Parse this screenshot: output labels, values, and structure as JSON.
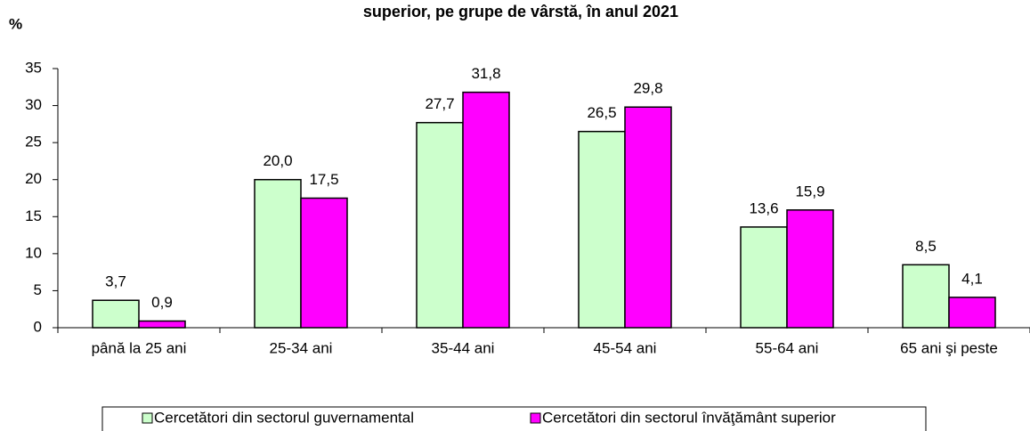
{
  "chart_data": {
    "type": "bar",
    "title": "superior, pe grupe de vârstă, în anul 2021",
    "y_label": "%",
    "categories": [
      "până la 25 ani",
      "25-34 ani",
      "35-44 ani",
      "45-54 ani",
      "55-64 ani",
      "65 ani şi peste"
    ],
    "series": [
      {
        "name": "Cercetători din sectorul guvernamental",
        "color": "#ccffcc",
        "values": [
          3.7,
          20.0,
          27.7,
          26.5,
          13.6,
          8.5
        ],
        "value_labels": [
          "3,7",
          "20,0",
          "27,7",
          "26,5",
          "13,6",
          "8,5"
        ]
      },
      {
        "name": "Cercetători din sectorul învăţământ superior",
        "color": "#ff00ff",
        "values": [
          0.9,
          17.5,
          31.8,
          29.8,
          15.9,
          4.1
        ],
        "value_labels": [
          "0,9",
          "17,5",
          "31,8",
          "29,8",
          "15,9",
          "4,1"
        ]
      }
    ],
    "ylim": [
      0,
      35
    ],
    "yticks": [
      0,
      5,
      10,
      15,
      20,
      25,
      30,
      35
    ],
    "legend": "bottom"
  }
}
